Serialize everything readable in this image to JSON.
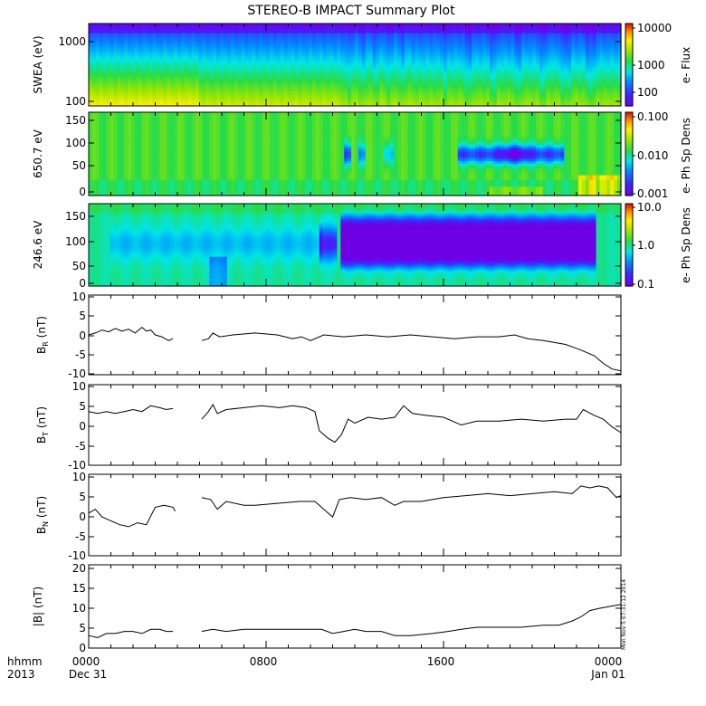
{
  "title": "STEREO-B IMPACT Summary Plot",
  "time_axis": {
    "row1_labels": [
      "hhmm",
      "0000",
      "0800",
      "1600",
      "0000"
    ],
    "row2_labels": [
      "2013",
      "Dec 31",
      "Jan 01"
    ],
    "range_hours": [
      0,
      24
    ],
    "major_ticks_hours": [
      0,
      8,
      16,
      24
    ]
  },
  "stamp": "Mon Nov 5 07:31:12 2014",
  "panels": [
    {
      "id": "swea",
      "ylabel": "SWEA (eV)",
      "type": "heatmap",
      "yscale": "log",
      "yticks": [
        "1000",
        "100"
      ],
      "cbar_label": "e- Flux",
      "cbar_ticks": [
        "10000",
        "1000",
        "100"
      ]
    },
    {
      "id": "pad650",
      "ylabel": "650.7 eV",
      "type": "heatmap",
      "yticks": [
        "150",
        "100",
        "50",
        "0"
      ],
      "cbar_label": "e- Ph Sp Dens",
      "cbar_ticks": [
        "0.100",
        "0.010",
        "0.001"
      ]
    },
    {
      "id": "pad246",
      "ylabel": "246.6 eV",
      "type": "heatmap",
      "yticks": [
        "150",
        "100",
        "50",
        "0"
      ],
      "cbar_label": "e- Ph Sp Dens",
      "cbar_ticks": [
        "10.0",
        "1.0",
        "0.1"
      ]
    },
    {
      "id": "br",
      "ylabel_main": "B",
      "ylabel_sub": "R",
      "ylabel_unit": " (nT)",
      "yticks": [
        "10",
        "5",
        "0",
        "-5",
        "-10"
      ]
    },
    {
      "id": "bt",
      "ylabel_main": "B",
      "ylabel_sub": "T",
      "ylabel_unit": " (nT)",
      "yticks": [
        "10",
        "5",
        "0",
        "-5",
        "-10"
      ]
    },
    {
      "id": "bn",
      "ylabel_main": "B",
      "ylabel_sub": "N",
      "ylabel_unit": " (nT)",
      "yticks": [
        "10",
        "5",
        "0",
        "-5",
        "-10"
      ]
    },
    {
      "id": "bmag",
      "ylabel": "|B| (nT)",
      "yticks": [
        "20",
        "15",
        "10",
        "5",
        "0"
      ]
    }
  ],
  "chart_data": [
    {
      "type": "heatmap",
      "name": "SWEA",
      "x_unit": "hours",
      "yscale": "log",
      "ylim_eV": [
        90,
        2000
      ],
      "color_scale": "log",
      "color_range": [
        30,
        20000
      ]
    },
    {
      "type": "heatmap",
      "name": "650.7 eV pitch angle",
      "x_unit": "hours",
      "ylim_deg": [
        0,
        180
      ],
      "color_scale": "log",
      "color_range": [
        0.001,
        0.1
      ]
    },
    {
      "type": "heatmap",
      "name": "246.6 eV pitch angle",
      "x_unit": "hours",
      "ylim_deg": [
        0,
        180
      ],
      "color_scale": "log",
      "color_range": [
        0.1,
        10
      ]
    },
    {
      "type": "line",
      "name": "BR",
      "x_unit": "hours",
      "ylim": [
        -11,
        10
      ],
      "segments": [
        [
          [
            0,
            -0.5
          ],
          [
            0.3,
            0
          ],
          [
            0.6,
            0.8
          ],
          [
            0.9,
            0.3
          ],
          [
            1.2,
            1.2
          ],
          [
            1.5,
            0.5
          ],
          [
            1.8,
            1
          ],
          [
            2.1,
            0
          ],
          [
            2.4,
            1.5
          ],
          [
            2.6,
            0.5
          ],
          [
            2.8,
            0.8
          ],
          [
            3.0,
            -0.5
          ],
          [
            3.3,
            -1
          ],
          [
            3.6,
            -2
          ],
          [
            3.8,
            -1.5
          ]
        ],
        [
          [
            5.1,
            -2
          ],
          [
            5.4,
            -1.5
          ],
          [
            5.6,
            0
          ],
          [
            5.9,
            -1
          ],
          [
            6.5,
            -0.5
          ],
          [
            7.5,
            0
          ],
          [
            8.5,
            -0.5
          ],
          [
            9.2,
            -1.5
          ],
          [
            9.6,
            -1
          ],
          [
            10.0,
            -2
          ],
          [
            10.6,
            -0.5
          ],
          [
            11.5,
            -1
          ],
          [
            12.5,
            -0.5
          ],
          [
            13.5,
            -1
          ],
          [
            14.5,
            -0.5
          ],
          [
            15.5,
            -1
          ],
          [
            16.5,
            -1.5
          ],
          [
            17.5,
            -1
          ],
          [
            18.5,
            -1
          ],
          [
            19.2,
            -0.5
          ],
          [
            19.8,
            -1.5
          ],
          [
            20.5,
            -2
          ],
          [
            21.5,
            -3
          ],
          [
            22.2,
            -4.5
          ],
          [
            22.8,
            -6
          ],
          [
            23.2,
            -8
          ],
          [
            23.6,
            -9.5
          ],
          [
            24,
            -10
          ]
        ]
      ]
    },
    {
      "type": "line",
      "name": "BT",
      "x_unit": "hours",
      "ylim": [
        -11,
        10
      ],
      "segments": [
        [
          [
            0,
            3
          ],
          [
            0.4,
            2.5
          ],
          [
            0.8,
            3
          ],
          [
            1.2,
            2.5
          ],
          [
            1.6,
            3
          ],
          [
            2.0,
            3.5
          ],
          [
            2.4,
            3
          ],
          [
            2.8,
            4.5
          ],
          [
            3.2,
            4
          ],
          [
            3.5,
            3.5
          ],
          [
            3.8,
            3.8
          ]
        ],
        [
          [
            5.1,
            1
          ],
          [
            5.4,
            3
          ],
          [
            5.6,
            4.8
          ],
          [
            5.8,
            2.5
          ],
          [
            6.2,
            3.5
          ],
          [
            7,
            4
          ],
          [
            7.8,
            4.5
          ],
          [
            8.6,
            4
          ],
          [
            9.2,
            4.5
          ],
          [
            9.8,
            4
          ],
          [
            10.2,
            3
          ],
          [
            10.4,
            -2
          ],
          [
            10.8,
            -4
          ],
          [
            11.1,
            -5
          ],
          [
            11.4,
            -3
          ],
          [
            11.7,
            1
          ],
          [
            12.0,
            0
          ],
          [
            12.6,
            1.5
          ],
          [
            13.2,
            1
          ],
          [
            13.8,
            1.5
          ],
          [
            14.2,
            4.5
          ],
          [
            14.6,
            2.5
          ],
          [
            15.2,
            2
          ],
          [
            16,
            1.5
          ],
          [
            16.8,
            -0.5
          ],
          [
            17.5,
            0.5
          ],
          [
            18.5,
            0.5
          ],
          [
            19.5,
            1
          ],
          [
            20.5,
            0.5
          ],
          [
            21.5,
            1
          ],
          [
            22.0,
            1
          ],
          [
            22.3,
            3.5
          ],
          [
            22.8,
            2
          ],
          [
            23.2,
            1
          ],
          [
            23.6,
            -1
          ],
          [
            24,
            -2.5
          ]
        ]
      ]
    },
    {
      "type": "line",
      "name": "BN",
      "x_unit": "hours",
      "ylim": [
        -11,
        10
      ],
      "segments": [
        [
          [
            0,
            0
          ],
          [
            0.3,
            1
          ],
          [
            0.6,
            -1
          ],
          [
            1.0,
            -2
          ],
          [
            1.4,
            -3
          ],
          [
            1.8,
            -3.5
          ],
          [
            2.2,
            -2.5
          ],
          [
            2.6,
            -3
          ],
          [
            3.0,
            1.5
          ],
          [
            3.4,
            2
          ],
          [
            3.8,
            1.5
          ],
          [
            3.9,
            0.5
          ]
        ],
        [
          [
            5.1,
            4
          ],
          [
            5.5,
            3.5
          ],
          [
            5.8,
            1
          ],
          [
            6.2,
            3
          ],
          [
            7,
            2
          ],
          [
            7.5,
            2
          ],
          [
            8.5,
            2.5
          ],
          [
            9.5,
            3
          ],
          [
            10.2,
            3
          ],
          [
            10.6,
            1
          ],
          [
            11.0,
            -1
          ],
          [
            11.3,
            3.5
          ],
          [
            11.8,
            4
          ],
          [
            12.5,
            3.5
          ],
          [
            13.2,
            4
          ],
          [
            13.8,
            2
          ],
          [
            14.2,
            3
          ],
          [
            15,
            3
          ],
          [
            16,
            4
          ],
          [
            17,
            4.5
          ],
          [
            18,
            5
          ],
          [
            19,
            4.5
          ],
          [
            20,
            5
          ],
          [
            21,
            5.5
          ],
          [
            21.8,
            5
          ],
          [
            22.2,
            7
          ],
          [
            22.6,
            6.5
          ],
          [
            23,
            7
          ],
          [
            23.4,
            6.5
          ],
          [
            23.8,
            4
          ],
          [
            24,
            4.5
          ]
        ]
      ]
    },
    {
      "type": "line",
      "name": "|B|",
      "x_unit": "hours",
      "ylim": [
        0,
        20
      ],
      "segments": [
        [
          [
            0,
            3
          ],
          [
            0.4,
            2.5
          ],
          [
            0.8,
            3.5
          ],
          [
            1.2,
            3.5
          ],
          [
            1.6,
            4
          ],
          [
            2.0,
            4
          ],
          [
            2.4,
            3.5
          ],
          [
            2.8,
            4.5
          ],
          [
            3.2,
            4.5
          ],
          [
            3.5,
            4
          ],
          [
            3.8,
            4
          ]
        ],
        [
          [
            5.1,
            4
          ],
          [
            5.6,
            4.5
          ],
          [
            6.2,
            4
          ],
          [
            7,
            4.5
          ],
          [
            8,
            4.5
          ],
          [
            9,
            4.5
          ],
          [
            10,
            4.5
          ],
          [
            10.5,
            4.5
          ],
          [
            11.0,
            3.5
          ],
          [
            11.5,
            4
          ],
          [
            12,
            4.5
          ],
          [
            12.5,
            4
          ],
          [
            13.2,
            4
          ],
          [
            13.8,
            3
          ],
          [
            14.5,
            3
          ],
          [
            15.5,
            3.5
          ],
          [
            16.2,
            4
          ],
          [
            16.8,
            4.5
          ],
          [
            17.5,
            5
          ],
          [
            18.5,
            5
          ],
          [
            19.5,
            5
          ],
          [
            20.5,
            5.5
          ],
          [
            21.2,
            5.5
          ],
          [
            21.8,
            6.5
          ],
          [
            22.2,
            7.5
          ],
          [
            22.6,
            9
          ],
          [
            23,
            9.5
          ],
          [
            23.5,
            10
          ],
          [
            24,
            10.5
          ]
        ]
      ]
    }
  ]
}
